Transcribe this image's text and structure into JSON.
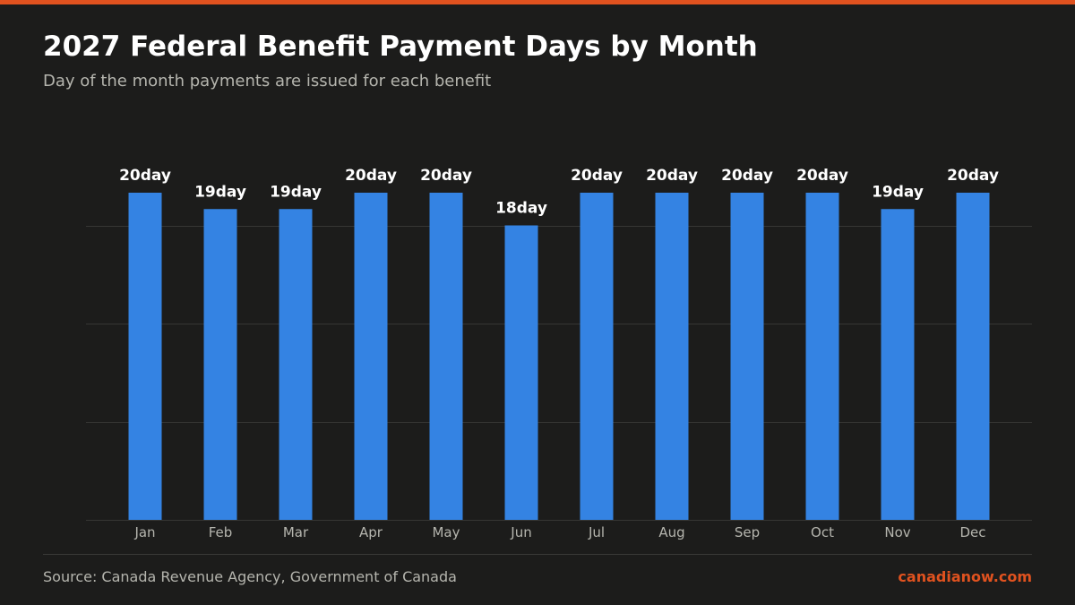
{
  "header": {
    "title": "2027 Federal Benefit Payment Days by Month",
    "subtitle": "Day of the month payments are issued for each benefit"
  },
  "footer": {
    "source": "Source: Canada Revenue Agency, Government of Canada",
    "brand": "canadianow.com"
  },
  "colors": {
    "background": "#1c1c1b",
    "accent": "#e0521f",
    "bar": "#3483e3",
    "grid": "#363634",
    "label": "#ffffff",
    "tick": "#b5b5ae"
  },
  "chart_data": {
    "type": "bar",
    "categories": [
      "Jan",
      "Feb",
      "Mar",
      "Apr",
      "May",
      "Jun",
      "Jul",
      "Aug",
      "Sep",
      "Oct",
      "Nov",
      "Dec"
    ],
    "values": [
      20,
      19,
      19,
      20,
      20,
      18,
      20,
      20,
      20,
      20,
      19,
      20
    ],
    "data_labels": [
      "20day",
      "19day",
      "19day",
      "20day",
      "20day",
      "18day",
      "20day",
      "20day",
      "20day",
      "20day",
      "19day",
      "20day"
    ],
    "ylim": [
      0,
      24
    ],
    "gridlines": [
      0,
      6,
      12,
      18
    ],
    "grid": true,
    "legend": "none",
    "xlabel": "",
    "ylabel": ""
  }
}
